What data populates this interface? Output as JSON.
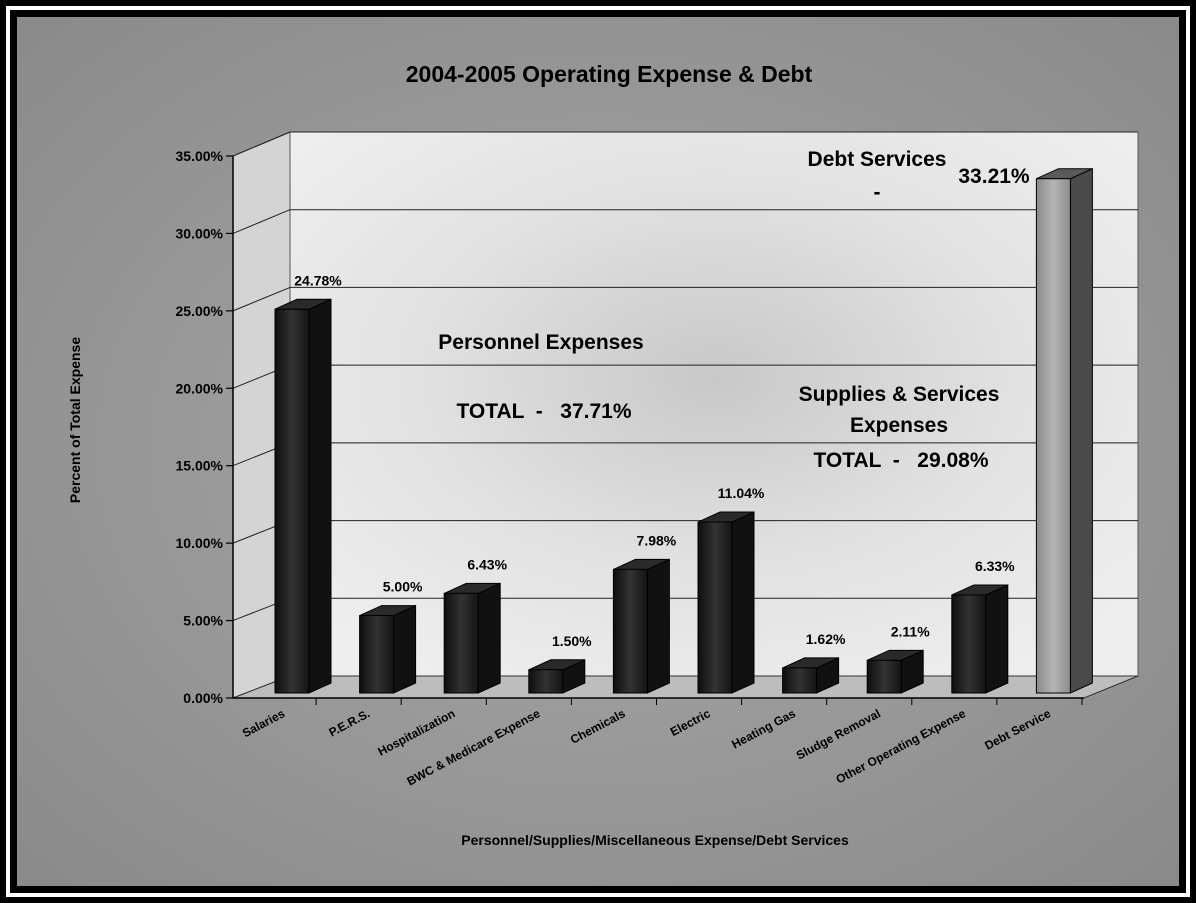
{
  "chart_data": {
    "type": "bar",
    "title": "2004-2005 Operating Expense & Debt",
    "xlabel": "Personnel/Supplies/Miscellaneous Expense/Debt Services",
    "ylabel": "Percent of Total Expense",
    "ylim": [
      0,
      35
    ],
    "yticks": [
      "0.00%",
      "5.00%",
      "10.00%",
      "15.00%",
      "20.00%",
      "25.00%",
      "30.00%",
      "35.00%"
    ],
    "grid": true,
    "categories": [
      "Salaries",
      "P.E.R.S.",
      "Hospitalization",
      "BWC & Medicare Expense",
      "Chemicals",
      "Electric",
      "Heating Gas",
      "Sludge Removal",
      "Other Operating Expense",
      "Debt Service"
    ],
    "values": [
      24.78,
      5.0,
      6.43,
      1.5,
      7.98,
      11.04,
      1.62,
      2.11,
      6.33,
      33.21
    ],
    "value_labels": [
      "24.78%",
      "5.00%",
      "6.43%",
      "1.50%",
      "7.98%",
      "11.04%",
      "1.62%",
      "2.11%",
      "6.33%",
      "33.21%"
    ],
    "colors": {
      "bar_dark": "#1c1c1c",
      "bar_highlight": "#9a9a9a",
      "background_outer": "#8c8c8c",
      "plot_wall": "#e6e6e6"
    },
    "annotations": {
      "personnel_title": "Personnel Expenses",
      "personnel_total": "TOTAL  -   37.71%",
      "supplies_title_1": "Supplies & Services",
      "supplies_title_2": "Expenses",
      "supplies_total": "TOTAL  -   29.08%",
      "debt_title": "Debt Services",
      "debt_dash": "-"
    }
  }
}
